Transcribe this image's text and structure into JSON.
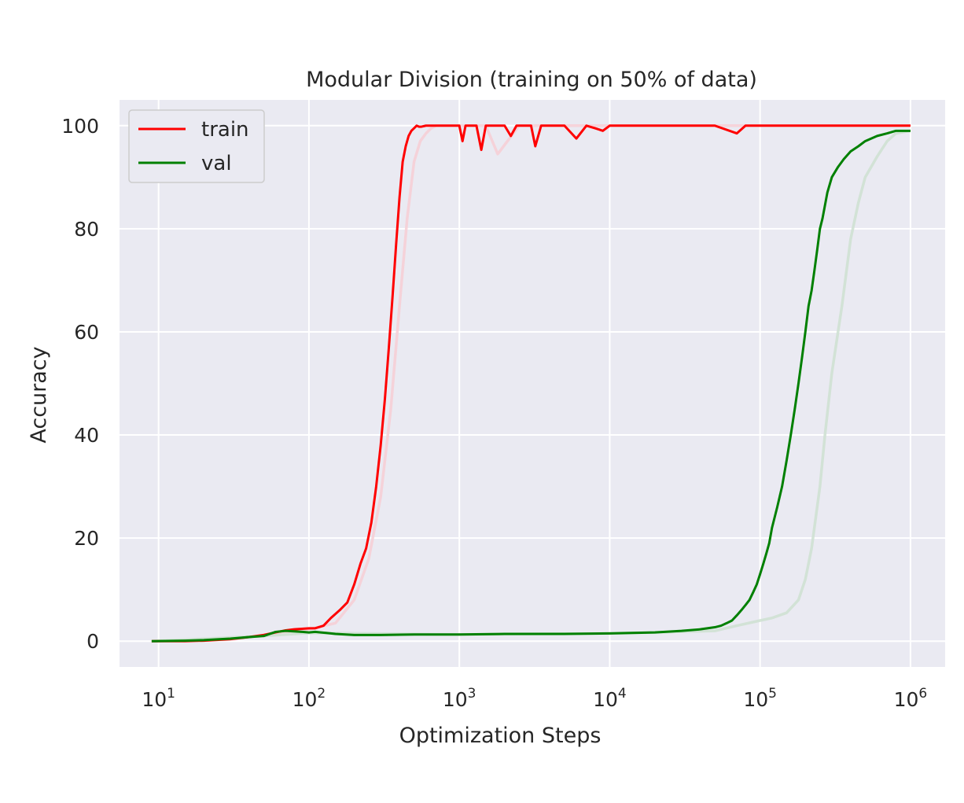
{
  "chart_data": {
    "type": "line",
    "title": "Modular Division (training on 50% of data)",
    "xlabel": "Optimization Steps",
    "ylabel": "Accuracy",
    "xscale": "log",
    "xlim": [
      5.5,
      1700000
    ],
    "ylim": [
      -5,
      105
    ],
    "grid": true,
    "legend_position": "top-left",
    "y_ticks": [
      0,
      20,
      40,
      60,
      80,
      100
    ],
    "x_tick_labels": [
      {
        "value": 10,
        "base": "10",
        "exp": "1"
      },
      {
        "value": 100,
        "base": "10",
        "exp": "2"
      },
      {
        "value": 1000,
        "base": "10",
        "exp": "3"
      },
      {
        "value": 10000,
        "base": "10",
        "exp": "4"
      },
      {
        "value": 100000,
        "base": "10",
        "exp": "5"
      },
      {
        "value": 1000000,
        "base": "10",
        "exp": "6"
      }
    ],
    "colors": {
      "train": "#ff0000",
      "val": "#008000",
      "train_faint": "#f6cfd6",
      "val_faint": "#cfe1d3",
      "background": "#eaeaf2",
      "grid": "#ffffff"
    },
    "series": [
      {
        "name": "train",
        "x": [
          9,
          15,
          20,
          30,
          40,
          50,
          60,
          70,
          80,
          90,
          100,
          110,
          125,
          140,
          160,
          180,
          200,
          220,
          240,
          260,
          280,
          300,
          320,
          340,
          360,
          380,
          400,
          420,
          440,
          460,
          480,
          500,
          520,
          540,
          560,
          600,
          650,
          700,
          800,
          900,
          1000,
          1050,
          1100,
          1200,
          1300,
          1400,
          1500,
          1600,
          1700,
          1800,
          2000,
          2200,
          2400,
          2600,
          3000,
          3200,
          3500,
          4000,
          5000,
          6000,
          7000,
          8000,
          9000,
          10000,
          15000,
          20000,
          30000,
          50000,
          70000,
          80000,
          90000,
          100000,
          200000,
          500000,
          1000000
        ],
        "values": [
          0,
          0,
          0.1,
          0.4,
          0.8,
          1.2,
          1.7,
          2.1,
          2.3,
          2.4,
          2.5,
          2.5,
          3.0,
          4.5,
          6.0,
          7.5,
          11,
          15,
          18,
          23,
          30,
          38,
          47,
          57,
          67,
          77,
          86,
          93,
          96,
          98,
          99,
          99.5,
          100,
          99.8,
          99.8,
          100,
          100,
          100,
          100,
          100,
          100,
          97,
          100,
          100,
          100,
          95.3,
          100,
          100,
          100,
          100,
          100,
          98,
          100,
          100,
          100,
          96,
          100,
          100,
          100,
          97.5,
          100,
          99.5,
          99,
          100,
          100,
          100,
          100,
          100,
          98.5,
          100,
          100,
          100,
          100,
          100,
          100
        ]
      },
      {
        "name": "val",
        "x": [
          9,
          15,
          20,
          30,
          40,
          50,
          60,
          70,
          80,
          90,
          100,
          110,
          120,
          130,
          150,
          200,
          300,
          500,
          1000,
          2000,
          5000,
          10000,
          20000,
          30000,
          40000,
          50000,
          55000,
          60000,
          65000,
          70000,
          75000,
          80000,
          85000,
          90000,
          95000,
          100000,
          105000,
          110000,
          115000,
          120000,
          130000,
          140000,
          150000,
          160000,
          170000,
          180000,
          190000,
          200000,
          210000,
          220000,
          230000,
          240000,
          250000,
          260000,
          280000,
          300000,
          330000,
          360000,
          400000,
          450000,
          500000,
          600000,
          700000,
          800000,
          900000,
          1000000
        ],
        "values": [
          0,
          0.1,
          0.2,
          0.5,
          0.8,
          1.0,
          1.8,
          2.0,
          1.9,
          1.8,
          1.7,
          1.8,
          1.7,
          1.6,
          1.4,
          1.2,
          1.2,
          1.3,
          1.3,
          1.4,
          1.4,
          1.5,
          1.7,
          2.0,
          2.3,
          2.7,
          3.0,
          3.5,
          4.0,
          5.0,
          6.0,
          7.0,
          8.0,
          9.5,
          11,
          13,
          15,
          17,
          19,
          22,
          26,
          30,
          35,
          40,
          45,
          50,
          55,
          60,
          65,
          68,
          72,
          76,
          80,
          82,
          87,
          90,
          92,
          93.5,
          95,
          96,
          97,
          98,
          98.5,
          99,
          99,
          99
        ]
      },
      {
        "name": "train_raw",
        "x": [
          9,
          30,
          60,
          100,
          150,
          200,
          250,
          300,
          350,
          400,
          450,
          500,
          550,
          600,
          650,
          700,
          800,
          1000,
          1500,
          1800,
          2500,
          5000,
          10000,
          100000,
          1000000
        ],
        "values": [
          0,
          0.3,
          1.5,
          2.3,
          3.5,
          8,
          16,
          28,
          45,
          65,
          82,
          93,
          97,
          98.5,
          99.5,
          100,
          100,
          100,
          100,
          94.5,
          100,
          100,
          100,
          100,
          100
        ]
      },
      {
        "name": "val_raw",
        "x": [
          9,
          50,
          100,
          1000,
          10000,
          50000,
          70000,
          100000,
          120000,
          150000,
          180000,
          200000,
          220000,
          250000,
          270000,
          300000,
          350000,
          400000,
          450000,
          500000,
          600000,
          700000,
          800000,
          1000000
        ],
        "values": [
          0,
          1.0,
          1.6,
          1.3,
          1.5,
          2.0,
          3.0,
          4.0,
          4.5,
          5.5,
          8,
          12,
          18,
          30,
          40,
          52,
          65,
          78,
          85,
          90,
          94,
          97,
          98.5,
          99
        ]
      }
    ]
  }
}
